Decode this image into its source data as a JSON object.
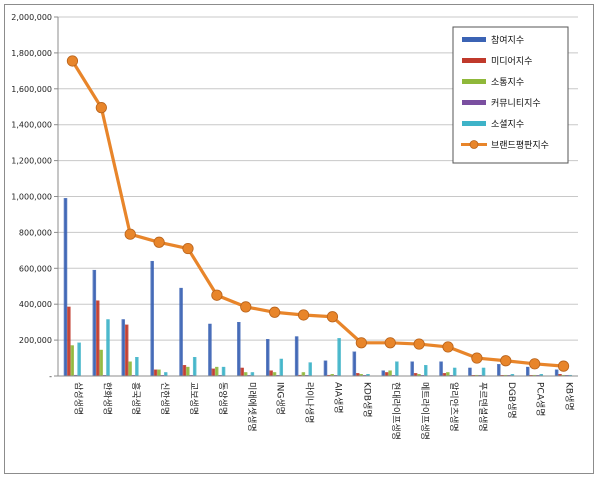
{
  "chart_data": {
    "type": "bar",
    "title": "",
    "xlabel": "",
    "ylabel": "",
    "ylim": [
      0,
      2000000
    ],
    "yticks": [
      0,
      200000,
      400000,
      600000,
      800000,
      1000000,
      1200000,
      1400000,
      1600000,
      1800000,
      2000000
    ],
    "ytick_labels": [
      "-",
      "200,000",
      "400,000",
      "600,000",
      "800,000",
      "1,000,000",
      "1,200,000",
      "1,400,000",
      "1,600,000",
      "1,800,000",
      "2,000,000"
    ],
    "grid": true,
    "legend_position": "top-right",
    "categories": [
      "삼성생명",
      "한화생명",
      "흥국생명",
      "신한생명",
      "교보생명",
      "동양생명",
      "미래에셋생명",
      "ING생명",
      "라이나생명",
      "AIA생명",
      "KDB생명",
      "현대라이프생명",
      "메트라이프생명",
      "알리안츠생명",
      "푸르덴셜생명",
      "DGB생명",
      "PCA생명",
      "KB생명"
    ],
    "series": [
      {
        "name": "참여지수",
        "type": "bar",
        "color": "#3b63b4",
        "values": [
          990000,
          590000,
          315000,
          640000,
          490000,
          290000,
          300000,
          205000,
          220000,
          85000,
          135000,
          30000,
          80000,
          80000,
          45000,
          65000,
          50000,
          35000
        ]
      },
      {
        "name": "미디어지수",
        "type": "bar",
        "color": "#c0392b",
        "values": [
          385000,
          420000,
          285000,
          35000,
          60000,
          40000,
          45000,
          30000,
          5000,
          5000,
          15000,
          20000,
          15000,
          15000,
          3000,
          3000,
          2000,
          10000
        ]
      },
      {
        "name": "소통지수",
        "type": "bar",
        "color": "#8fb83a",
        "values": [
          170000,
          145000,
          80000,
          35000,
          50000,
          50000,
          20000,
          20000,
          20000,
          10000,
          10000,
          30000,
          10000,
          20000,
          5000,
          5000,
          5000,
          5000
        ]
      },
      {
        "name": "커뮤니티지수",
        "type": "bar",
        "color": "#7a4fa0",
        "values": [
          5000,
          3000,
          2000,
          2000,
          2000,
          2000,
          2000,
          2000,
          2000,
          2000,
          2000,
          2000,
          2000,
          2000,
          2000,
          2000,
          2000,
          2000
        ]
      },
      {
        "name": "소셜지수",
        "type": "bar",
        "color": "#3eb3c8",
        "values": [
          185000,
          315000,
          105000,
          20000,
          105000,
          50000,
          20000,
          95000,
          75000,
          210000,
          10000,
          80000,
          60000,
          45000,
          45000,
          10000,
          10000,
          5000
        ]
      },
      {
        "name": "브랜드평판지수",
        "type": "line",
        "color": "#e8852a",
        "values": [
          1755000,
          1495000,
          790000,
          745000,
          710000,
          450000,
          385000,
          355000,
          340000,
          330000,
          185000,
          185000,
          178000,
          162000,
          100000,
          85000,
          68000,
          55000
        ]
      }
    ]
  },
  "colors": {
    "gridline": "#c8c8c8",
    "axis": "#8c8c8c",
    "frame": "#8c8c8c",
    "line_marker_edge": "#b8621a"
  }
}
